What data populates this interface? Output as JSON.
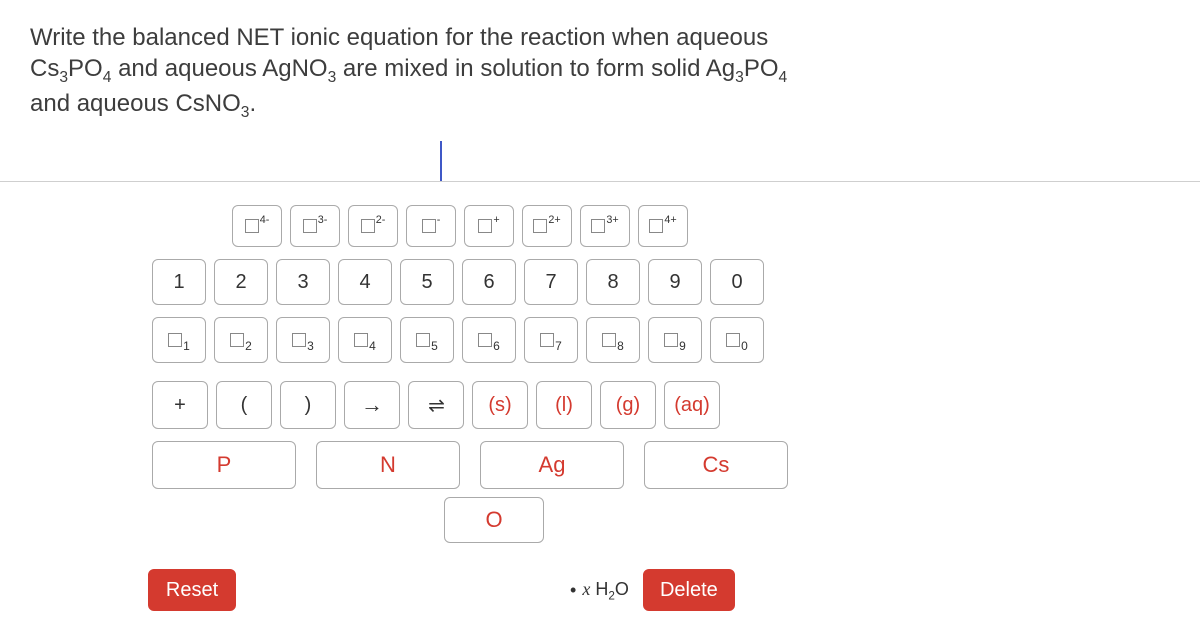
{
  "question": {
    "line1_pre": "Write the balanced NET ionic equation for the reaction when aqueous",
    "line2_a": "Cs",
    "line2_a_sub": "3",
    "line2_b": "PO",
    "line2_b_sub": "4",
    "line2_mid": " and aqueous AgNO",
    "line2_mid_sub": "3",
    "line2_tail": " are mixed in solution to form solid Ag",
    "line2_tail_sub": "3",
    "line2_po": "PO",
    "line2_po_sub": "4",
    "line3_pre": "and aqueous CsNO",
    "line3_sub": "3",
    "line3_post": "."
  },
  "charges": {
    "row": [
      {
        "sup": "4-"
      },
      {
        "sup": "3-"
      },
      {
        "sup": "2-"
      },
      {
        "sup": "-"
      },
      {
        "sup": "+"
      },
      {
        "sup": "2+"
      },
      {
        "sup": "3+"
      },
      {
        "sup": "4+"
      }
    ]
  },
  "digits": [
    "1",
    "2",
    "3",
    "4",
    "5",
    "6",
    "7",
    "8",
    "9",
    "0"
  ],
  "subscripts": [
    "1",
    "2",
    "3",
    "4",
    "5",
    "6",
    "7",
    "8",
    "9",
    "0"
  ],
  "ops": {
    "plus": "+",
    "lpar": "(",
    "rpar": ")",
    "arrow": "→",
    "equil": "⇌",
    "s": "(s)",
    "l": "(l)",
    "g": "(g)",
    "aq": "(aq)"
  },
  "elements": {
    "P": "P",
    "N": "N",
    "Ag": "Ag",
    "Cs": "Cs",
    "O": "O"
  },
  "hint": {
    "dot": "•",
    "x": "x",
    "h2o_h": "H",
    "h2o_2": "2",
    "h2o_o": "O"
  },
  "buttons": {
    "reset": "Reset",
    "delete": "Delete"
  },
  "colors": {
    "accent": "#d43a2f",
    "text": "#4a4a4a",
    "border": "#aaaaaa",
    "divider": "#cfcfcf",
    "cursor": "#3f58c7"
  }
}
